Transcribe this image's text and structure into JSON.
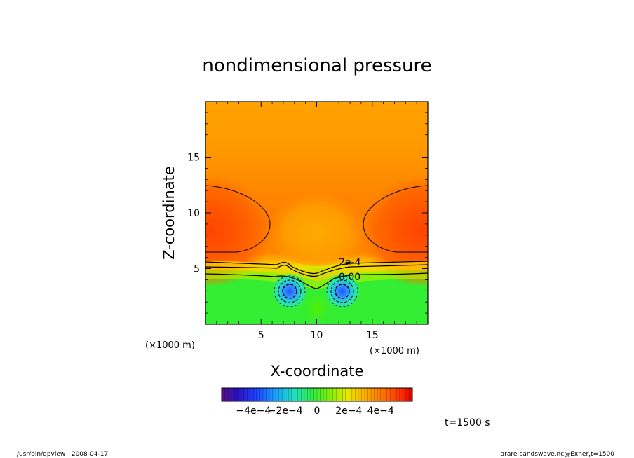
{
  "chart_data": {
    "type": "heatmap",
    "title": "nondimensional pressure",
    "xlabel": "X-coordinate",
    "ylabel": "Z-coordinate",
    "x_unit_left": "(×1000 m)",
    "x_unit_right": "(×1000 m)",
    "xlim": [
      0,
      20
    ],
    "ylim": [
      0,
      20
    ],
    "xticks": [
      5,
      10,
      15
    ],
    "yticks": [
      5,
      10,
      15
    ],
    "contour_labels": [
      "2e-4",
      "0.00"
    ],
    "colorbar": {
      "range": [
        -0.0006,
        0.0006
      ],
      "tick_values": [
        -0.0004,
        -0.0002,
        0,
        0.0002,
        0.0004
      ],
      "tick_labels": [
        "−4e−4",
        "−2e−4",
        "0",
        "2e−4",
        "4e−4"
      ]
    },
    "time_label": "t=1500 s"
  },
  "footer": {
    "left": "/usr/bin/gpview   2008-04-17",
    "right": "arare-sandswave.nc@Exner,t=1500"
  }
}
